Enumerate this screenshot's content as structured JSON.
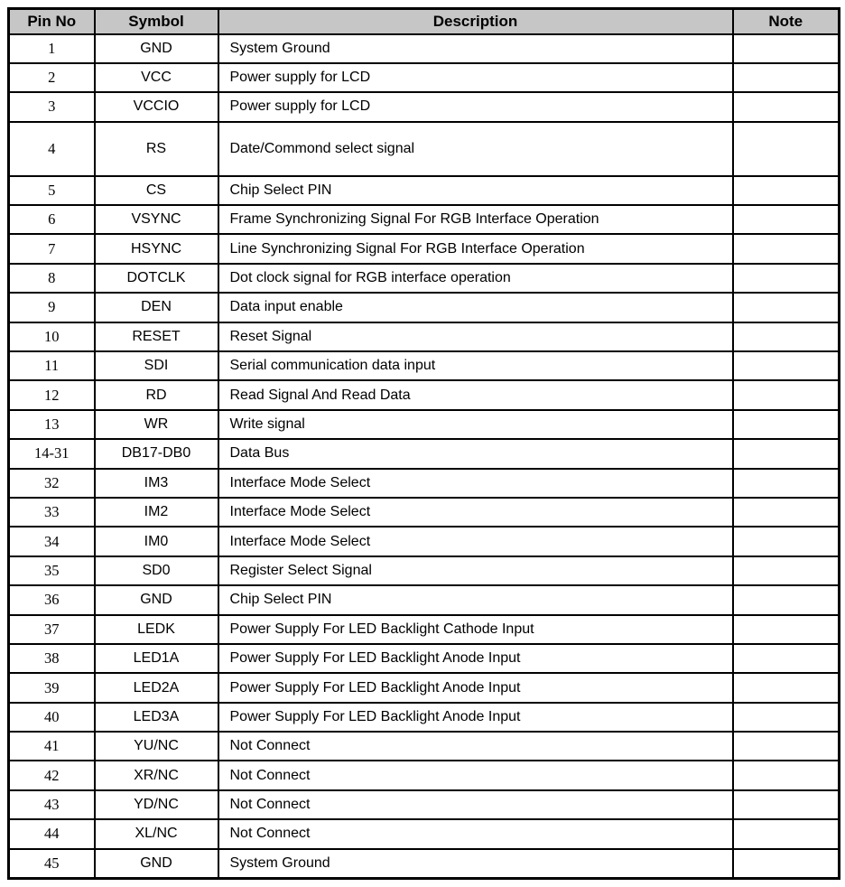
{
  "colors": {
    "page_bg": "#ffffff",
    "header_bg": "#c6c6c6",
    "border": "#000000",
    "text": "#000000"
  },
  "table": {
    "headers": [
      "Pin No",
      "Symbol",
      "Description",
      "Note"
    ],
    "rows": [
      {
        "pin": "1",
        "symbol": "GND",
        "description": "System Ground",
        "note": "",
        "tall": false
      },
      {
        "pin": "2",
        "symbol": "VCC",
        "description": "Power supply for LCD",
        "note": "",
        "tall": false
      },
      {
        "pin": "3",
        "symbol": "VCCIO",
        "description": "Power supply for LCD",
        "note": "",
        "tall": false
      },
      {
        "pin": "4",
        "symbol": "RS",
        "description": "Date/Commond select signal",
        "note": "",
        "tall": true
      },
      {
        "pin": "5",
        "symbol": "CS",
        "description": "Chip Select PIN",
        "note": "",
        "tall": false
      },
      {
        "pin": "6",
        "symbol": "VSYNC",
        "description": "Frame Synchronizing Signal For RGB Interface Operation",
        "note": "",
        "tall": false
      },
      {
        "pin": "7",
        "symbol": "HSYNC",
        "description": "Line Synchronizing Signal For RGB Interface Operation",
        "note": "",
        "tall": false
      },
      {
        "pin": "8",
        "symbol": "DOTCLK",
        "description": "Dot clock signal for RGB interface operation",
        "note": "",
        "tall": false
      },
      {
        "pin": "9",
        "symbol": "DEN",
        "description": "Data input enable",
        "note": "",
        "tall": false
      },
      {
        "pin": "10",
        "symbol": "RESET",
        "description": "Reset Signal",
        "note": "",
        "tall": false
      },
      {
        "pin": "11",
        "symbol": "SDI",
        "description": "Serial communication data input",
        "note": "",
        "tall": false
      },
      {
        "pin": "12",
        "symbol": "RD",
        "description": "Read Signal And Read Data",
        "note": "",
        "tall": false
      },
      {
        "pin": "13",
        "symbol": "WR",
        "description": "Write signal",
        "note": "",
        "tall": false
      },
      {
        "pin": "14-31",
        "symbol": "DB17-DB0",
        "description": "Data Bus",
        "note": "",
        "tall": false
      },
      {
        "pin": "32",
        "symbol": "IM3",
        "description": "Interface Mode Select",
        "note": "",
        "tall": false
      },
      {
        "pin": "33",
        "symbol": "IM2",
        "description": "Interface Mode Select",
        "note": "",
        "tall": false
      },
      {
        "pin": "34",
        "symbol": "IM0",
        "description": "Interface Mode Select",
        "note": "",
        "tall": false
      },
      {
        "pin": "35",
        "symbol": "SD0",
        "description": "Register Select Signal",
        "note": "",
        "tall": false
      },
      {
        "pin": "36",
        "symbol": "GND",
        "description": "Chip Select PIN",
        "note": "",
        "tall": false
      },
      {
        "pin": "37",
        "symbol": "LEDK",
        "description": "Power Supply For LED Backlight Cathode Input",
        "note": "",
        "tall": false
      },
      {
        "pin": "38",
        "symbol": "LED1A",
        "description": "Power Supply For LED Backlight Anode Input",
        "note": "",
        "tall": false
      },
      {
        "pin": "39",
        "symbol": "LED2A",
        "description": "Power Supply For LED Backlight Anode Input",
        "note": "",
        "tall": false
      },
      {
        "pin": "40",
        "symbol": "LED3A",
        "description": "Power Supply For LED Backlight Anode Input",
        "note": "",
        "tall": false
      },
      {
        "pin": "41",
        "symbol": "YU/NC",
        "description": "Not Connect",
        "note": "",
        "tall": false
      },
      {
        "pin": "42",
        "symbol": "XR/NC",
        "description": "Not Connect",
        "note": "",
        "tall": false
      },
      {
        "pin": "43",
        "symbol": "YD/NC",
        "description": "Not Connect",
        "note": "",
        "tall": false
      },
      {
        "pin": "44",
        "symbol": "XL/NC",
        "description": "Not Connect",
        "note": "",
        "tall": false
      },
      {
        "pin": "45",
        "symbol": "GND",
        "description": "System Ground",
        "note": "",
        "tall": false
      }
    ]
  }
}
